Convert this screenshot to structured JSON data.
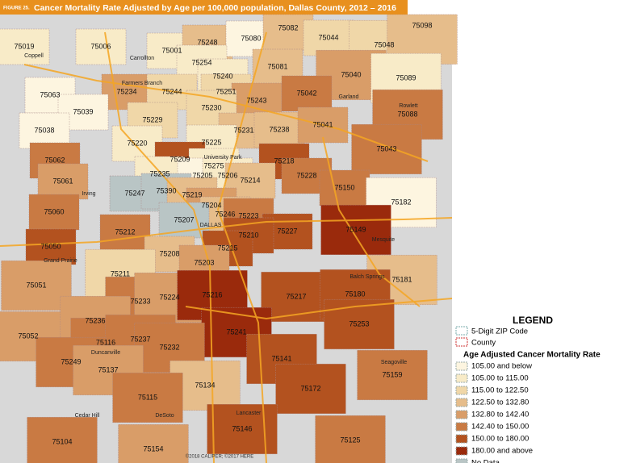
{
  "figure": "FIGURE 25.",
  "title": "Cancer Mortality Rate Adjusted by Age per 100,000 population, Dallas County, 2012 – 2016",
  "credit": "©2018 CALIPER; ©2017 HERE",
  "legend": {
    "title": "LEGEND",
    "zip_code": "5-Digit ZIP Code",
    "county": "County",
    "rate_title": "Age Adjusted Cancer Mortality Rate",
    "items": [
      {
        "label": "105.00 and below",
        "color": "#fdf5e0"
      },
      {
        "label": "105.00 to 115.00",
        "color": "#f8ebc8"
      },
      {
        "label": "115.00 to 122.50",
        "color": "#f0d7a8"
      },
      {
        "label": "122.50 to 132.80",
        "color": "#e6bd8b"
      },
      {
        "label": "132.80 to 142.40",
        "color": "#d99d68"
      },
      {
        "label": "142.40 to 150.00",
        "color": "#c97a43"
      },
      {
        "label": "150.00 to 180.00",
        "color": "#b3521f"
      },
      {
        "label": "180.00 and above",
        "color": "#9a2a0c"
      },
      {
        "label": "No Data",
        "color": "#b9c5c5"
      }
    ]
  },
  "zips": [
    {
      "zip": "75019",
      "class": 1
    },
    {
      "zip": "75006",
      "class": 1
    },
    {
      "zip": "75001",
      "class": 1
    },
    {
      "zip": "75248",
      "class": 3
    },
    {
      "zip": "75080",
      "class": 0
    },
    {
      "zip": "75082",
      "class": 3
    },
    {
      "zip": "75044",
      "class": 2
    },
    {
      "zip": "75048",
      "class": 2
    },
    {
      "zip": "75098",
      "class": 3
    },
    {
      "zip": "75254",
      "class": 1
    },
    {
      "zip": "75081",
      "class": 3
    },
    {
      "zip": "75040",
      "class": 4
    },
    {
      "zip": "75089",
      "class": 1
    },
    {
      "zip": "75240",
      "class": 1
    },
    {
      "zip": "75063",
      "class": 0
    },
    {
      "zip": "75234",
      "class": 4
    },
    {
      "zip": "75244",
      "class": 2
    },
    {
      "zip": "75251",
      "class": 2
    },
    {
      "zip": "75243",
      "class": 4
    },
    {
      "zip": "75042",
      "class": 5
    },
    {
      "zip": "75039",
      "class": 0
    },
    {
      "zip": "75230",
      "class": 2
    },
    {
      "zip": "75229",
      "class": 2
    },
    {
      "zip": "75088",
      "class": 5
    },
    {
      "zip": "75038",
      "class": 0
    },
    {
      "zip": "75231",
      "class": 3
    },
    {
      "zip": "75238",
      "class": 3
    },
    {
      "zip": "75041",
      "class": 4
    },
    {
      "zip": "75220",
      "class": 1
    },
    {
      "zip": "75225",
      "class": 1
    },
    {
      "zip": "75043",
      "class": 5
    },
    {
      "zip": "75062",
      "class": 5
    },
    {
      "zip": "75209",
      "class": 6
    },
    {
      "zip": "75218",
      "class": 6
    },
    {
      "zip": "75235",
      "class": 1
    },
    {
      "zip": "75275",
      "class": 1
    },
    {
      "zip": "75205",
      "class": 0
    },
    {
      "zip": "75206",
      "class": 1
    },
    {
      "zip": "75214",
      "class": 3
    },
    {
      "zip": "75228",
      "class": 5
    },
    {
      "zip": "75061",
      "class": 4
    },
    {
      "zip": "75247",
      "class": 8
    },
    {
      "zip": "75390",
      "class": 8
    },
    {
      "zip": "75219",
      "class": 3
    },
    {
      "zip": "75150",
      "class": 5
    },
    {
      "zip": "75182",
      "class": 0
    },
    {
      "zip": "75204",
      "class": 4
    },
    {
      "zip": "75060",
      "class": 5
    },
    {
      "zip": "75246",
      "class": 3
    },
    {
      "zip": "75223",
      "class": 5
    },
    {
      "zip": "75207",
      "class": 8
    },
    {
      "zip": "75227",
      "class": 6
    },
    {
      "zip": "75149",
      "class": 7
    },
    {
      "zip": "75212",
      "class": 5
    },
    {
      "zip": "75210",
      "class": 6
    },
    {
      "zip": "75050",
      "class": 6
    },
    {
      "zip": "75215",
      "class": 6
    },
    {
      "zip": "75208",
      "class": 3
    },
    {
      "zip": "75203",
      "class": 4
    },
    {
      "zip": "75211",
      "class": 2
    },
    {
      "zip": "75181",
      "class": 3
    },
    {
      "zip": "75051",
      "class": 4
    },
    {
      "zip": "75233",
      "class": 5
    },
    {
      "zip": "75224",
      "class": 4
    },
    {
      "zip": "75216",
      "class": 7
    },
    {
      "zip": "75217",
      "class": 6
    },
    {
      "zip": "75180",
      "class": 6
    },
    {
      "zip": "75253",
      "class": 6
    },
    {
      "zip": "75052",
      "class": 4
    },
    {
      "zip": "75236",
      "class": 4
    },
    {
      "zip": "75241",
      "class": 7
    },
    {
      "zip": "75116",
      "class": 5
    },
    {
      "zip": "75237",
      "class": 5
    },
    {
      "zip": "75232",
      "class": 5
    },
    {
      "zip": "75249",
      "class": 5
    },
    {
      "zip": "75141",
      "class": 6
    },
    {
      "zip": "75137",
      "class": 4
    },
    {
      "zip": "75134",
      "class": 3
    },
    {
      "zip": "75172",
      "class": 6
    },
    {
      "zip": "75159",
      "class": 5
    },
    {
      "zip": "75115",
      "class": 5
    },
    {
      "zip": "75146",
      "class": 6
    },
    {
      "zip": "75104",
      "class": 5
    },
    {
      "zip": "75154",
      "class": 4
    },
    {
      "zip": "75125",
      "class": 5
    }
  ],
  "places": [
    "Coppell",
    "Carrollton",
    "Farmers Branch",
    "Garland",
    "Rowlett",
    "University Park",
    "Irving",
    "DALLAS",
    "Mesquite",
    "Grand Prairie",
    "Balch Springs",
    "Duncanville",
    "Seagoville",
    "Cedar Hill",
    "DeSoto",
    "Lancaster"
  ]
}
